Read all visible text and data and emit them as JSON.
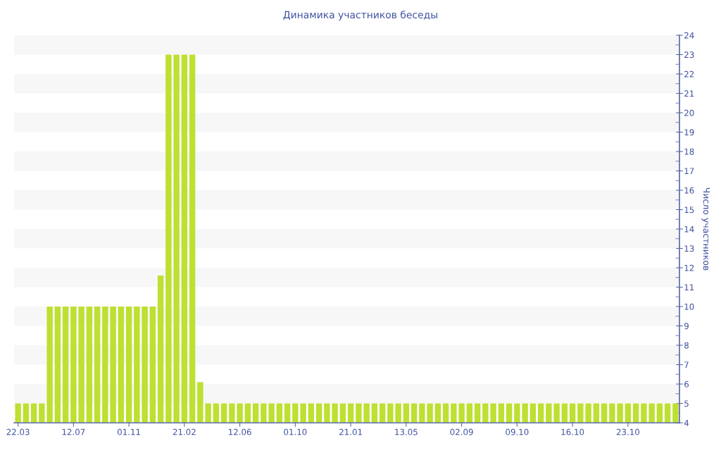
{
  "chart_data": {
    "type": "bar",
    "title": "Динамика участников беседы",
    "ylabel": "Число участников",
    "categories": [
      "22.03",
      null,
      null,
      null,
      null,
      null,
      null,
      "12.07",
      null,
      null,
      null,
      null,
      null,
      null,
      "01.11",
      null,
      null,
      null,
      null,
      null,
      null,
      "21.02",
      null,
      null,
      null,
      null,
      null,
      null,
      "12.06",
      null,
      null,
      null,
      null,
      null,
      null,
      "01.10",
      null,
      null,
      null,
      null,
      null,
      null,
      "21.01",
      null,
      null,
      null,
      null,
      null,
      null,
      "13.05",
      null,
      null,
      null,
      null,
      null,
      null,
      "02.09",
      null,
      null,
      null,
      null,
      null,
      null,
      "09.10",
      null,
      null,
      null,
      null,
      null,
      null,
      "16.10",
      null,
      null,
      null,
      null,
      null,
      null,
      "23.10",
      null,
      null,
      null,
      null,
      null,
      null
    ],
    "values": [
      5,
      5,
      5,
      5,
      10,
      10,
      10,
      10,
      10,
      10,
      10,
      10,
      10,
      10,
      10,
      10,
      10,
      10,
      11.6,
      23,
      23,
      23,
      23,
      6.1,
      5,
      5,
      5,
      5,
      5,
      5,
      5,
      5,
      5,
      5,
      5,
      5,
      5,
      5,
      5,
      5,
      5,
      5,
      5,
      5,
      5,
      5,
      5,
      5,
      5,
      5,
      5,
      5,
      5,
      5,
      5,
      5,
      5,
      5,
      5,
      5,
      5,
      5,
      5,
      5,
      5,
      5,
      5,
      5,
      5,
      5,
      5,
      5,
      5,
      5,
      5,
      5,
      5,
      5,
      5,
      5,
      5,
      5,
      5,
      5
    ],
    "color": "#bde032",
    "ylim": [
      4,
      24
    ],
    "yticks": [
      4,
      5,
      6,
      7,
      8,
      9,
      10,
      11,
      12,
      13,
      14,
      15,
      16,
      17,
      18,
      19,
      20,
      21,
      22,
      23,
      24
    ],
    "bands": [
      {
        "axis": "y",
        "from": 5,
        "to": 6,
        "color": "#f7f7f7"
      },
      {
        "axis": "y",
        "from": 7,
        "to": 8,
        "color": "#f7f7f7"
      },
      {
        "axis": "y",
        "from": 9,
        "to": 10,
        "color": "#f7f7f7"
      },
      {
        "axis": "y",
        "from": 11,
        "to": 12,
        "color": "#f7f7f7"
      },
      {
        "axis": "y",
        "from": 13,
        "to": 14,
        "color": "#f7f7f7"
      },
      {
        "axis": "y",
        "from": 15,
        "to": 16,
        "color": "#f7f7f7"
      },
      {
        "axis": "y",
        "from": 17,
        "to": 18,
        "color": "#f7f7f7"
      },
      {
        "axis": "y",
        "from": 19,
        "to": 20,
        "color": "#f7f7f7"
      },
      {
        "axis": "y",
        "from": 21,
        "to": 22,
        "color": "#f7f7f7"
      },
      {
        "axis": "y",
        "from": 23,
        "to": 24,
        "color": "#f7f7f7"
      }
    ]
  }
}
